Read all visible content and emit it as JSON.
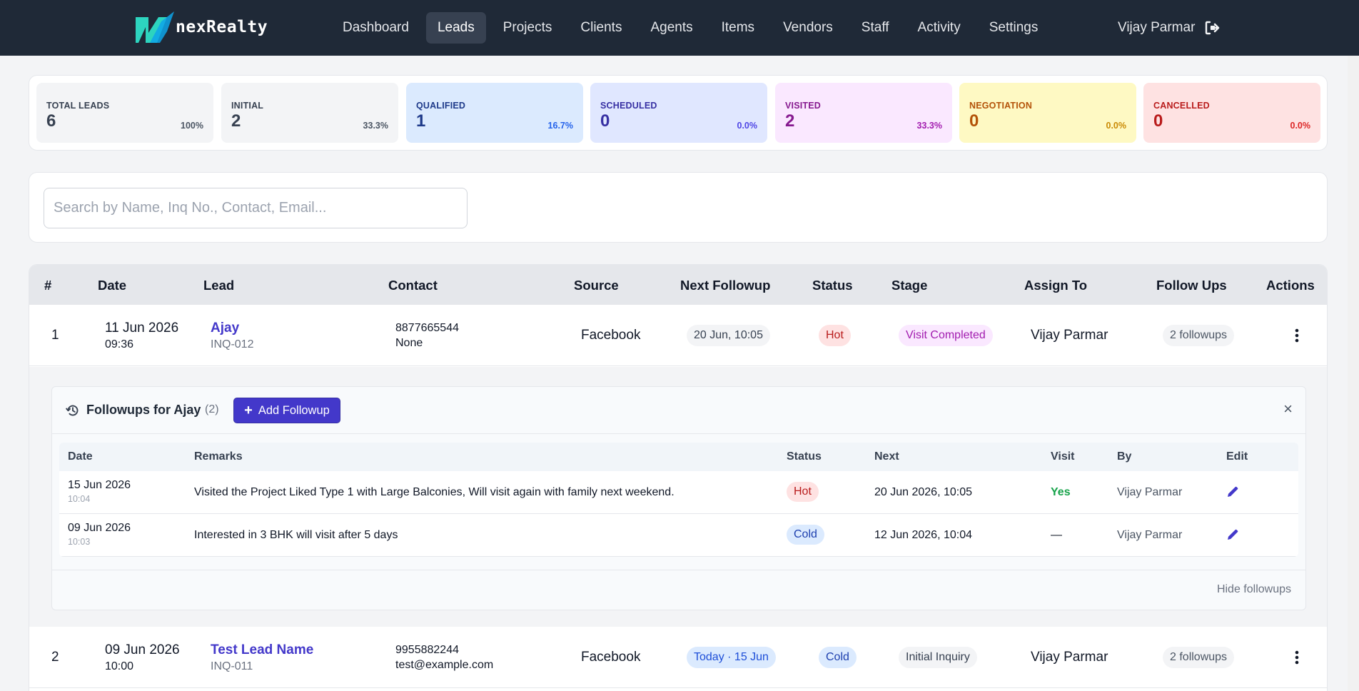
{
  "app": {
    "brand": "nexRealty",
    "nav": [
      "Dashboard",
      "Leads",
      "Projects",
      "Clients",
      "Agents",
      "Items",
      "Vendors",
      "Staff",
      "Activity",
      "Settings"
    ],
    "active_nav": "Leads",
    "user_name": "Vijay Parmar"
  },
  "stats": [
    {
      "label": "TOTAL LEADS",
      "value": "6",
      "pct": "100%",
      "bg": "#f3f4f6",
      "fg": "#374151",
      "pct_color": "#4b5563"
    },
    {
      "label": "INITIAL",
      "value": "2",
      "pct": "33.3%",
      "bg": "#f3f4f6",
      "fg": "#374151",
      "pct_color": "#4b5563"
    },
    {
      "label": "QUALIFIED",
      "value": "1",
      "pct": "16.7%",
      "bg": "#dbeafe",
      "fg": "#1e3a8a",
      "pct_color": "#2563eb"
    },
    {
      "label": "SCHEDULED",
      "value": "0",
      "pct": "0.0%",
      "bg": "#e0e7ff",
      "fg": "#3730a3",
      "pct_color": "#4f46e5"
    },
    {
      "label": "VISITED",
      "value": "2",
      "pct": "33.3%",
      "bg": "#fae8ff",
      "fg": "#86198f",
      "pct_color": "#a21caf"
    },
    {
      "label": "NEGOTIATION",
      "value": "0",
      "pct": "0.0%",
      "bg": "#fef9c3",
      "fg": "#b45309",
      "pct_color": "#ca8a04"
    },
    {
      "label": "CANCELLED",
      "value": "0",
      "pct": "0.0%",
      "bg": "#fee2e2",
      "fg": "#b91c1c",
      "pct_color": "#dc2626"
    }
  ],
  "search": {
    "placeholder": "Search by Name, Inq No., Contact, Email..."
  },
  "table": {
    "headers": [
      "#",
      "Date",
      "Lead",
      "Contact",
      "Source",
      "Next Followup",
      "Status",
      "Stage",
      "Assign To",
      "Follow Ups",
      "Actions"
    ],
    "rows": [
      {
        "num": "1",
        "date": "11 Jun 2026",
        "time": "09:36",
        "lead": "Ajay",
        "inq": "INQ-012",
        "contact_phone": "8877665544",
        "contact_email": "None",
        "source": "Facebook",
        "next_followup": "20 Jun, 10:05",
        "status": "Hot",
        "stage": "Visit Completed",
        "assign_to": "Vijay Parmar",
        "followups": "2 followups"
      },
      {
        "num": "2",
        "date": "09 Jun 2026",
        "time": "10:00",
        "lead": "Test Lead Name",
        "inq": "INQ-011",
        "contact_phone": "9955882244",
        "contact_email": "test@example.com",
        "source": "Facebook",
        "next_followup": "Today · 15 Jun",
        "status": "Cold",
        "stage": "Initial Inquiry",
        "assign_to": "Vijay Parmar",
        "followups": "2 followups"
      }
    ]
  },
  "followups_panel": {
    "title": "Followups for Ajay",
    "count": "(2)",
    "add_label": "Add Followup",
    "close": "×",
    "headers": [
      "Date",
      "Remarks",
      "Status",
      "Next",
      "Visit",
      "By",
      "Edit"
    ],
    "rows": [
      {
        "date": "15 Jun 2026",
        "time": "10:04",
        "remarks": "Visited the Project Liked Type 1 with Large Balconies, Will visit again with family next weekend.",
        "status": "Hot",
        "next": "20 Jun 2026, 10:05",
        "visit": "Yes",
        "by": "Vijay Parmar"
      },
      {
        "date": "09 Jun 2026",
        "time": "10:03",
        "remarks": "Interested in 3 BHK will visit after 5 days",
        "status": "Cold",
        "next": "12 Jun 2026, 10:04",
        "visit": "—",
        "by": "Vijay Parmar"
      }
    ],
    "hide_label": "Hide followups"
  }
}
